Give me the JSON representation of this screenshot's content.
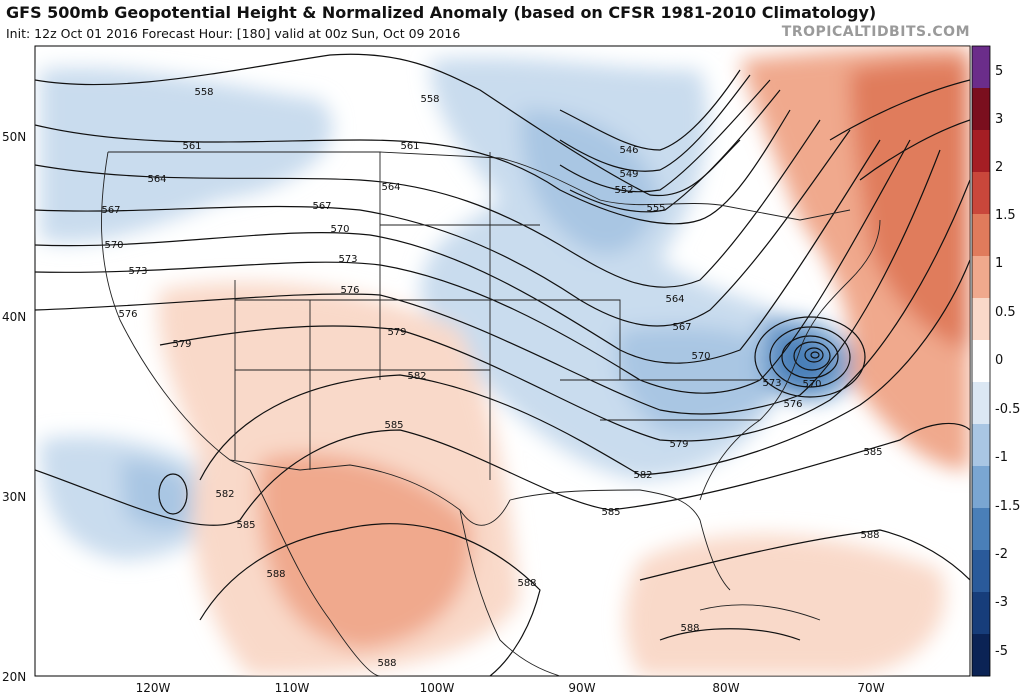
{
  "header": {
    "title": "GFS 500mb Geopotential Height & Normalized Anomaly (based on CFSR 1981-2010 Climatology)",
    "subtitle": "Init: 12z Oct 01 2016   Forecast Hour: [180]   valid at 00z Sun, Oct 09 2016",
    "brand": "TROPICALTIDBITS.COM"
  },
  "axes": {
    "lat_labels": [
      "50N",
      "40N",
      "30N",
      "20N"
    ],
    "lon_labels": [
      "120W",
      "110W",
      "100W",
      "90W",
      "80W",
      "70W"
    ]
  },
  "colorbar": {
    "labels": [
      "5",
      "3",
      "2",
      "1.5",
      "1",
      "0.5",
      "0",
      "-0.5",
      "-1",
      "-1.5",
      "-2",
      "-3",
      "-5"
    ],
    "colors": [
      "#6b2d8a",
      "#7a0f1e",
      "#a51e24",
      "#c9473b",
      "#e07b5c",
      "#f0a98d",
      "#f9d9c9",
      "#ffffff",
      "#dbe7f3",
      "#a9c6e3",
      "#7aa6d2",
      "#4a7fb8",
      "#2a5a9a",
      "#173d7a",
      "#0b2355"
    ]
  },
  "contour_labels": {
    "558": "558",
    "561": "561",
    "564": "564",
    "567": "567",
    "570": "570",
    "573": "573",
    "576": "576",
    "579": "579",
    "582": "582",
    "585": "585",
    "588": "588",
    "546": "546",
    "549": "549",
    "552": "552",
    "555": "555"
  }
}
